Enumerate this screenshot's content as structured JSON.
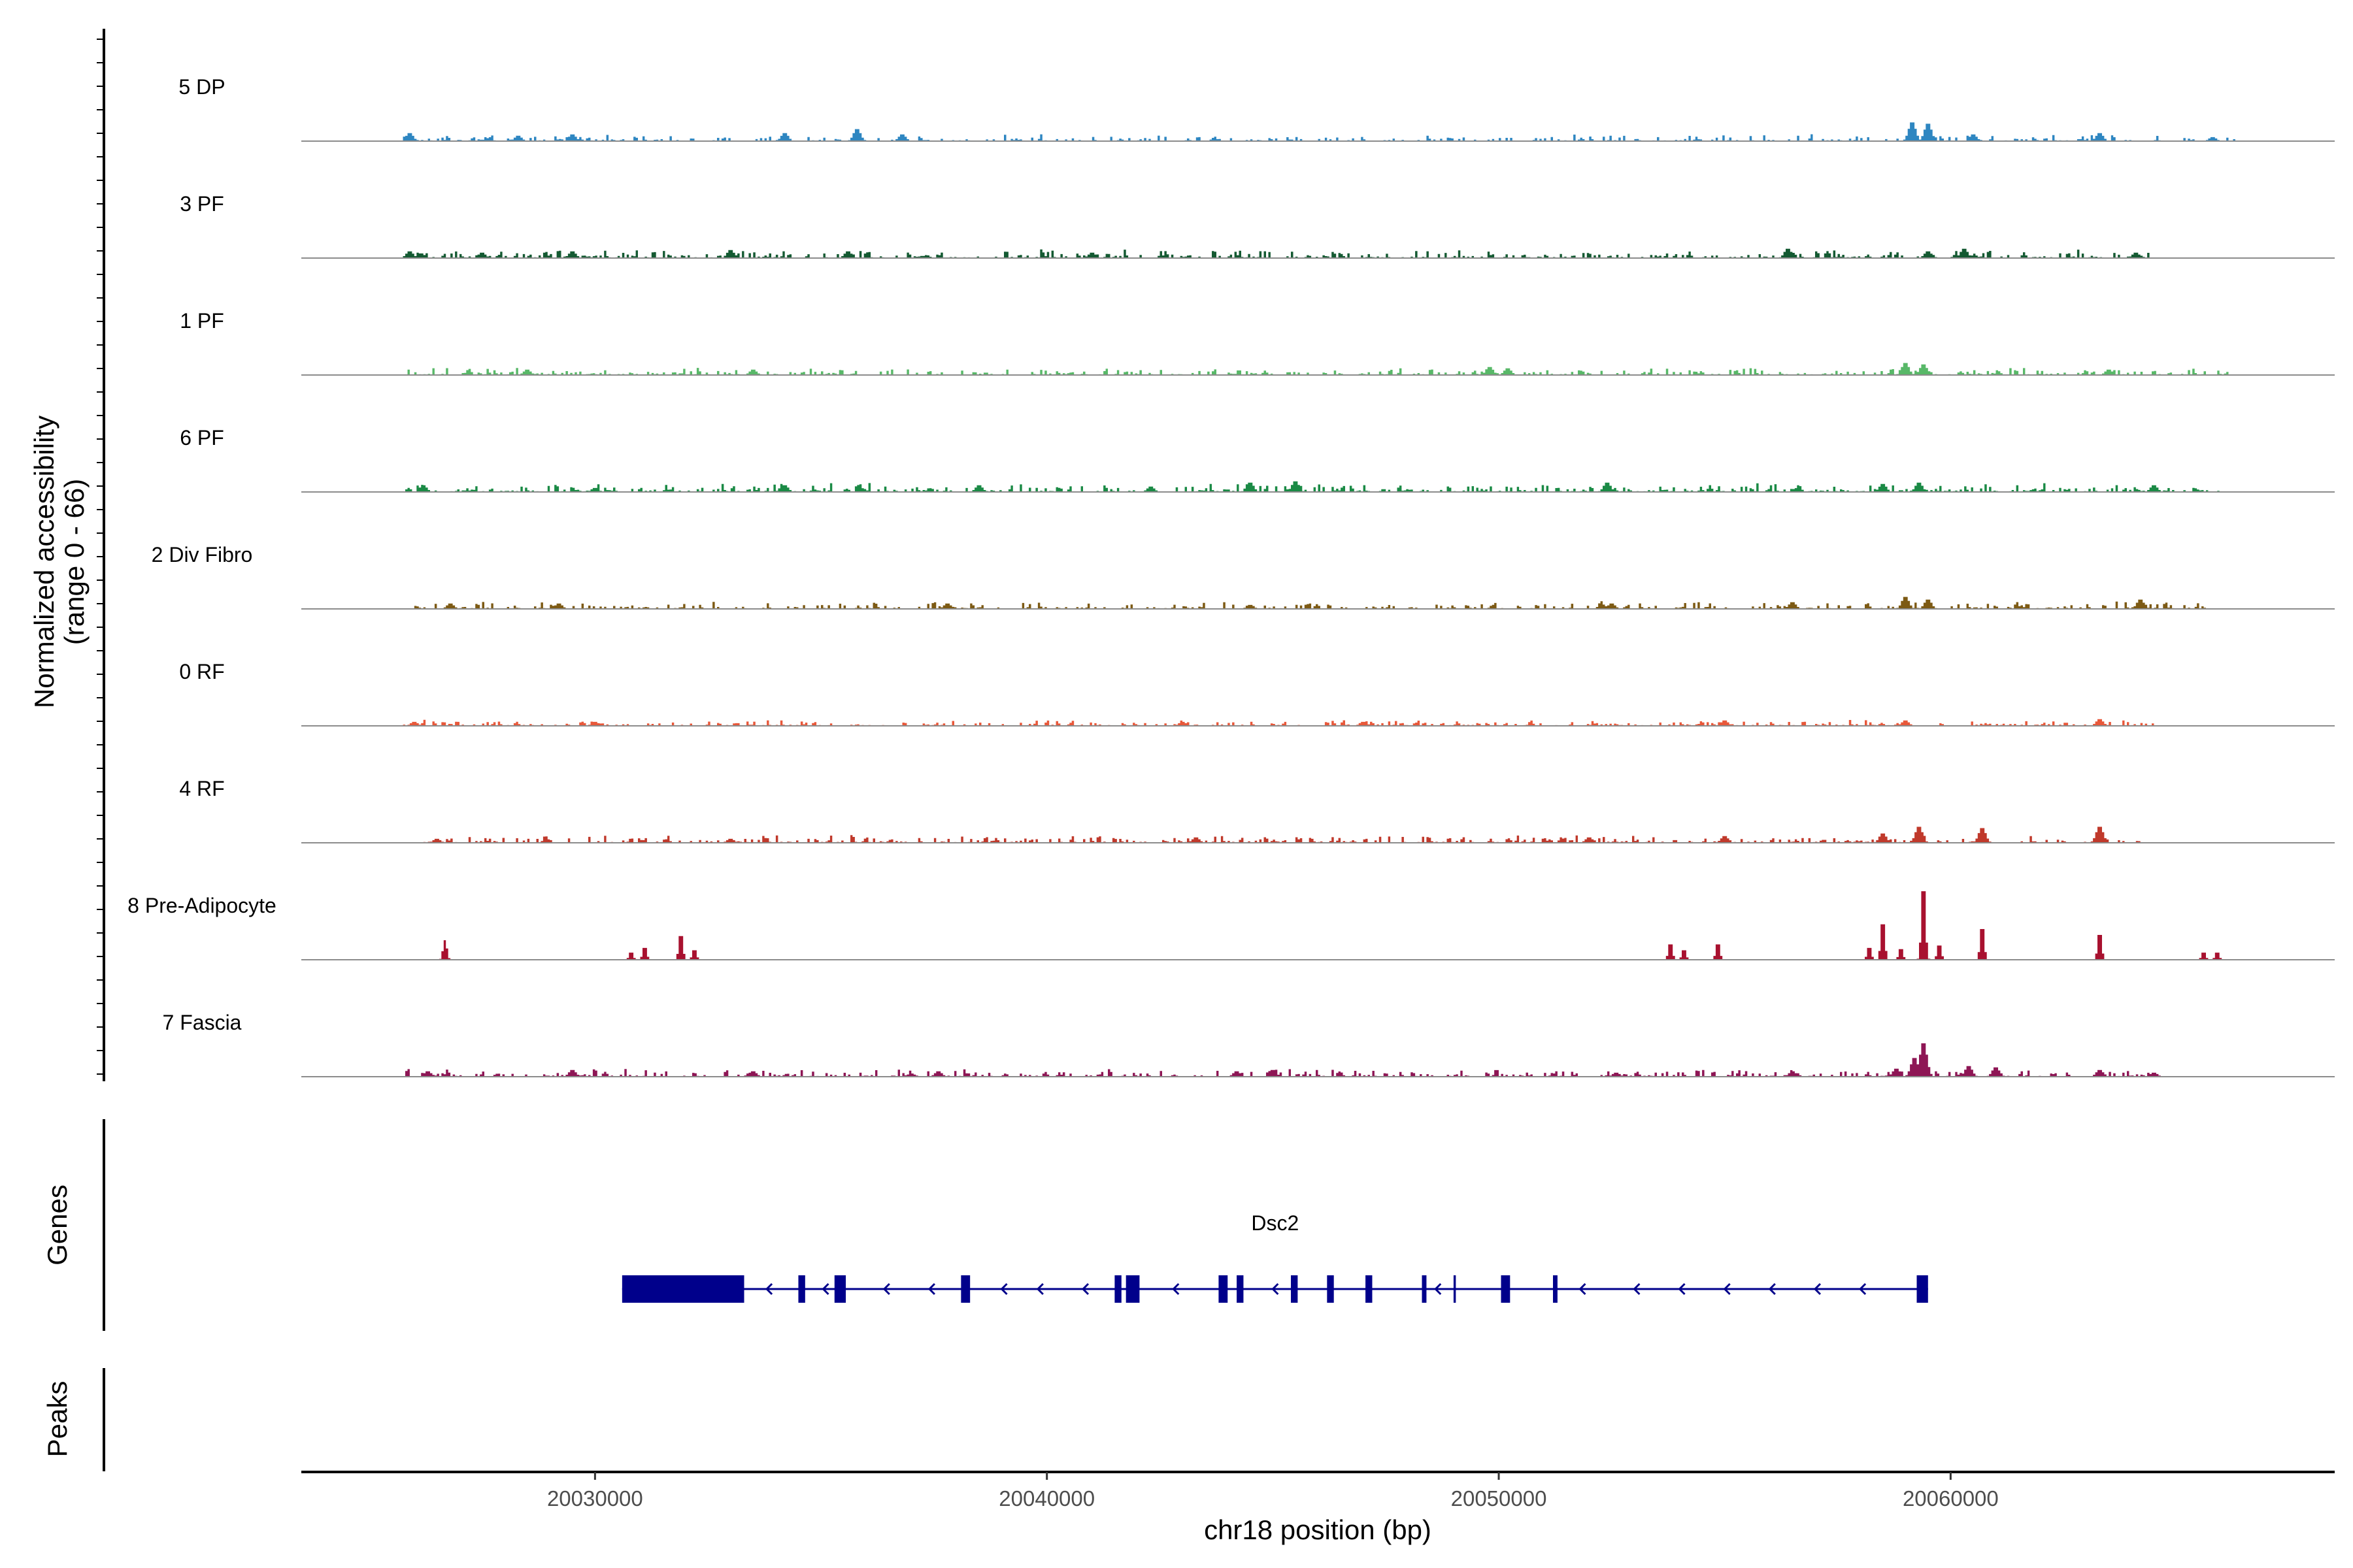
{
  "chart_data": {
    "type": "area",
    "region": {
      "chromosome": "chr18",
      "start": 20023500,
      "end": 20068500
    },
    "ylabel_line1": "Normalized accessibility",
    "ylabel_line2": "(range 0 - 66)",
    "y_range": [
      0,
      66
    ],
    "xlabel": "chr18 position (bp)",
    "x_ticks": [
      {
        "value": 20030000,
        "label": "20030000"
      },
      {
        "value": 20040000,
        "label": "20040000"
      },
      {
        "value": 20050000,
        "label": "20050000"
      },
      {
        "value": 20060000,
        "label": "20060000"
      }
    ],
    "series": [
      {
        "name": "5 DP",
        "color": "#2E86C1",
        "noise": 0.055,
        "density": 0.55,
        "span": [
          20025700,
          20066300
        ],
        "peaks": [
          [
            20025900,
            6
          ],
          [
            20028300,
            4
          ],
          [
            20029500,
            5
          ],
          [
            20034200,
            6
          ],
          [
            20035800,
            9
          ],
          [
            20036800,
            5
          ],
          [
            20059150,
            14
          ],
          [
            20059500,
            13
          ],
          [
            20060500,
            5
          ],
          [
            20063300,
            6
          ],
          [
            20065800,
            3
          ]
        ]
      },
      {
        "name": "3 PF",
        "color": "#145A32",
        "noise": 0.07,
        "density": 0.65,
        "span": [
          20025700,
          20064500
        ],
        "peaks": [
          [
            20025900,
            5
          ],
          [
            20027500,
            4
          ],
          [
            20029500,
            5
          ],
          [
            20033000,
            6
          ],
          [
            20035600,
            5
          ],
          [
            20041000,
            4
          ],
          [
            20056400,
            7
          ],
          [
            20059500,
            5
          ],
          [
            20060300,
            7
          ],
          [
            20064100,
            4
          ]
        ]
      },
      {
        "name": "1 PF",
        "color": "#58B868",
        "noise": 0.06,
        "density": 0.6,
        "span": [
          20025700,
          20066300
        ],
        "peaks": [
          [
            20028500,
            4
          ],
          [
            20033500,
            4
          ],
          [
            20049800,
            6
          ],
          [
            20050200,
            5
          ],
          [
            20059000,
            9
          ],
          [
            20059400,
            8
          ],
          [
            20063500,
            4
          ]
        ]
      },
      {
        "name": "6 PF",
        "color": "#1A8A45",
        "noise": 0.075,
        "density": 0.7,
        "span": [
          20025700,
          20066000
        ],
        "peaks": [
          [
            20026200,
            5
          ],
          [
            20030000,
            3
          ],
          [
            20034200,
            5
          ],
          [
            20038500,
            5
          ],
          [
            20042300,
            4
          ],
          [
            20044500,
            7
          ],
          [
            20045500,
            8
          ],
          [
            20052400,
            7
          ],
          [
            20058500,
            6
          ],
          [
            20059300,
            7
          ],
          [
            20064500,
            5
          ]
        ]
      },
      {
        "name": "2 Div Fibro",
        "color": "#7D5A14",
        "noise": 0.06,
        "density": 0.55,
        "span": [
          20026000,
          20065800
        ],
        "peaks": [
          [
            20026800,
            4
          ],
          [
            20029200,
            4
          ],
          [
            20037800,
            4
          ],
          [
            20044500,
            3
          ],
          [
            20052500,
            4
          ],
          [
            20056500,
            5
          ],
          [
            20059000,
            9
          ],
          [
            20059500,
            7
          ],
          [
            20064200,
            7
          ]
        ]
      },
      {
        "name": "0 RF",
        "color": "#E8583A",
        "noise": 0.05,
        "density": 0.6,
        "span": [
          20025700,
          20064500
        ],
        "peaks": [
          [
            20026000,
            3
          ],
          [
            20030000,
            3
          ],
          [
            20043000,
            3
          ],
          [
            20047000,
            3
          ],
          [
            20055000,
            4
          ],
          [
            20059000,
            4
          ],
          [
            20063300,
            5
          ]
        ]
      },
      {
        "name": "4 RF",
        "color": "#C0392B",
        "noise": 0.065,
        "density": 0.6,
        "span": [
          20026200,
          20064300
        ],
        "peaks": [
          [
            20026500,
            3
          ],
          [
            20033000,
            3
          ],
          [
            20043300,
            4
          ],
          [
            20052000,
            4
          ],
          [
            20055000,
            5
          ],
          [
            20058500,
            7
          ],
          [
            20059300,
            12
          ],
          [
            20060700,
            11
          ],
          [
            20063300,
            12
          ]
        ]
      },
      {
        "name": "8 Pre-Adipocyte",
        "color": "#A8112F",
        "noise": 0.0,
        "density": 0.0,
        "span": [
          20026000,
          20066000
        ],
        "peaks": [
          [
            20026680,
            14
          ],
          [
            20030800,
            6
          ],
          [
            20031100,
            10
          ],
          [
            20031900,
            20
          ],
          [
            20032200,
            8
          ],
          [
            20053800,
            13
          ],
          [
            20054100,
            8
          ],
          [
            20054850,
            13
          ],
          [
            20058200,
            10
          ],
          [
            20058500,
            30
          ],
          [
            20058900,
            9
          ],
          [
            20059400,
            58
          ],
          [
            20059750,
            12
          ],
          [
            20060700,
            26
          ],
          [
            20063300,
            21
          ],
          [
            20065600,
            6
          ],
          [
            20065900,
            6
          ]
        ]
      },
      {
        "name": "7 Fascia",
        "color": "#8E1655",
        "noise": 0.065,
        "density": 0.6,
        "span": [
          20025700,
          20064500
        ],
        "peaks": [
          [
            20026300,
            4
          ],
          [
            20029500,
            5
          ],
          [
            20033500,
            4
          ],
          [
            20037600,
            4
          ],
          [
            20044200,
            4
          ],
          [
            20045000,
            5
          ],
          [
            20052600,
            3
          ],
          [
            20056500,
            4
          ],
          [
            20058800,
            6
          ],
          [
            20059200,
            14
          ],
          [
            20059400,
            25
          ],
          [
            20060400,
            8
          ],
          [
            20061000,
            7
          ],
          [
            20063300,
            5
          ],
          [
            20064500,
            3
          ]
        ]
      }
    ],
    "gene_panel_title": "Genes",
    "peaks_panel_title": "Peaks",
    "gene": {
      "name": "Dsc2",
      "strand": "-",
      "start": 20030600,
      "end": 20059500,
      "color": "#00008B",
      "exons": [
        [
          20030600,
          20033300
        ],
        [
          20034500,
          20034650
        ],
        [
          20035300,
          20035550
        ],
        [
          20038100,
          20038300
        ],
        [
          20041500,
          20041650
        ],
        [
          20041750,
          20042050
        ],
        [
          20043800,
          20044000
        ],
        [
          20044200,
          20044350
        ],
        [
          20045400,
          20045550
        ],
        [
          20046200,
          20046350
        ],
        [
          20047050,
          20047200
        ],
        [
          20048300,
          20048400
        ],
        [
          20049000,
          20049050
        ],
        [
          20050050,
          20050250
        ],
        [
          20051200,
          20051300
        ],
        [
          20059250,
          20059500
        ]
      ],
      "chevrons": [
        20033800,
        20035050,
        20036400,
        20037400,
        20039000,
        20039800,
        20040800,
        20042800,
        20045000,
        20048600,
        20051800,
        20053000,
        20054000,
        20055000,
        20056000,
        20057000,
        20058000
      ]
    }
  }
}
